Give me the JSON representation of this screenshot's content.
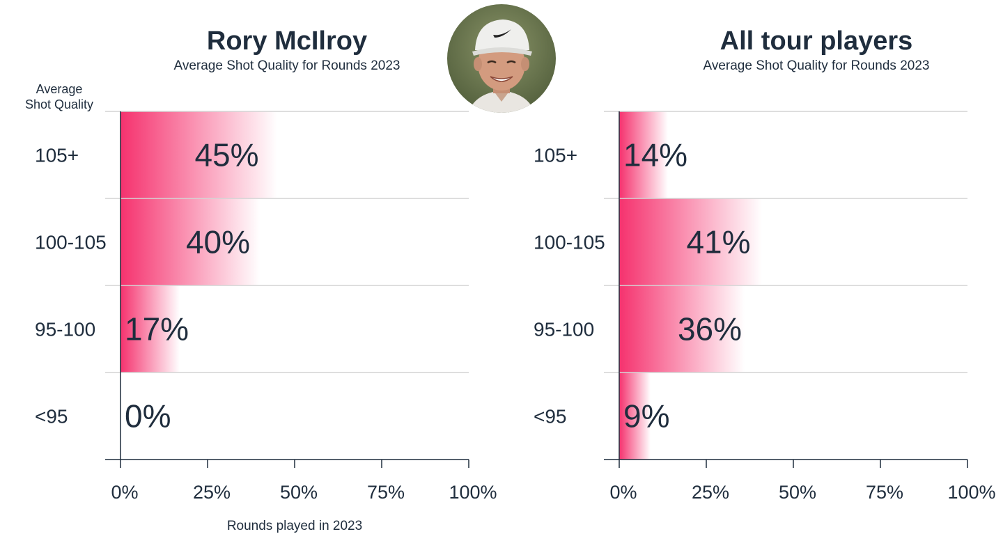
{
  "chart_data": [
    {
      "type": "bar",
      "orientation": "horizontal",
      "title": "Rory McIlroy",
      "subtitle": "Average Shot Quality for Rounds 2023",
      "ylabel": "Average\nShot Quality",
      "xlabel": "Rounds played in 2023",
      "categories": [
        "105+",
        "100-105",
        "95-100",
        "<95"
      ],
      "values": [
        45,
        40,
        17,
        0
      ],
      "value_labels": [
        "45%",
        "40%",
        "17%",
        "0%"
      ],
      "xlim": [
        0,
        100
      ],
      "xticks": [
        "0%",
        "25%",
        "50%",
        "75%",
        "100%"
      ],
      "grid": "horizontal",
      "bar_color": "#f5326e"
    },
    {
      "type": "bar",
      "orientation": "horizontal",
      "title": "All tour players",
      "subtitle": "Average Shot Quality for Rounds 2023",
      "categories": [
        "105+",
        "100-105",
        "95-100",
        "<95"
      ],
      "values": [
        14,
        41,
        36,
        9
      ],
      "value_labels": [
        "14%",
        "41%",
        "36%",
        "9%"
      ],
      "xlim": [
        0,
        100
      ],
      "xticks": [
        "0%",
        "25%",
        "50%",
        "75%",
        "100%"
      ],
      "grid": "horizontal",
      "bar_color": "#f5326e"
    }
  ],
  "photo": {
    "icon": "player-portrait-icon"
  }
}
